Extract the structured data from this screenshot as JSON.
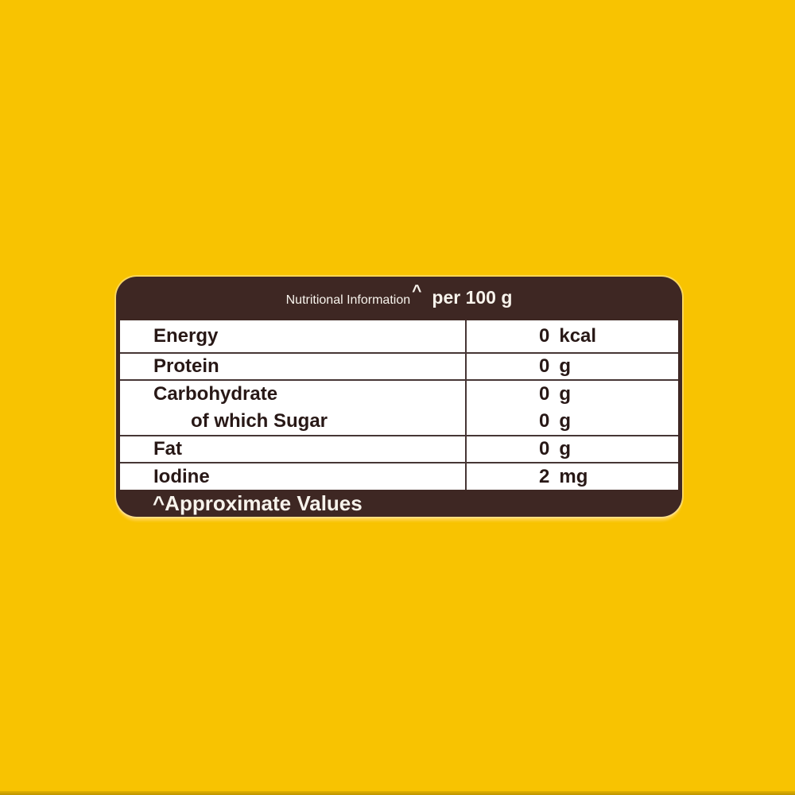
{
  "panel": {
    "header": {
      "title": "Nutritional Information",
      "superscript": "^",
      "per_label": "per 100 g"
    },
    "rows": [
      {
        "lines": [
          {
            "label": "Energy",
            "value": "0",
            "unit": "kcal",
            "indent": false
          }
        ]
      },
      {
        "lines": [
          {
            "label": "Protein",
            "value": "0",
            "unit": "g",
            "indent": false
          }
        ]
      },
      {
        "lines": [
          {
            "label": "Carbohydrate",
            "value": "0",
            "unit": "g",
            "indent": false
          },
          {
            "label": "of which Sugar",
            "value": "0",
            "unit": "g",
            "indent": true
          }
        ]
      },
      {
        "lines": [
          {
            "label": "Fat",
            "value": "0",
            "unit": "g",
            "indent": false
          }
        ]
      },
      {
        "lines": [
          {
            "label": "Iodine",
            "value": "2",
            "unit": "mg",
            "indent": false
          }
        ]
      }
    ],
    "footer": {
      "note": "^Approximate Values"
    }
  },
  "colors": {
    "background": "#F8C301",
    "panel_brown": "#3E2723",
    "divider_line": "#463635",
    "row_text": "#281816",
    "header_text": "#F7F3EC",
    "bottom_glow": "#FFD34F",
    "bottom_edge": "#C79C00"
  }
}
